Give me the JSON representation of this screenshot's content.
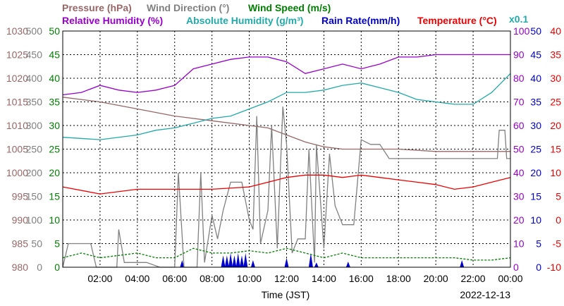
{
  "legend": {
    "row1": [
      {
        "text": "Pressure (hPa)",
        "color": "#996666"
      },
      {
        "text": "Wind Direction (°)",
        "color": "#808080"
      },
      {
        "text": "Wind Speed (m/s)",
        "color": "#008000"
      }
    ],
    "row2": [
      {
        "text": "Relative Humidity (%)",
        "color": "#9900cc"
      },
      {
        "text": "Absolute Humidity (g/m³)",
        "color": "#22aaaa"
      },
      {
        "text": "Rain Rate(mm/h)",
        "color": "#0000cc"
      },
      {
        "text": "Temperature (°C)",
        "color": "#ee0000"
      }
    ],
    "multiplier_note": {
      "text": "x0.1",
      "color": "#22aaaa"
    }
  },
  "axes": {
    "pressure": {
      "color": "#996666",
      "ticks": [
        "980",
        "985",
        "990",
        "995",
        "1000",
        "1005",
        "1010",
        "1015",
        "1020",
        "1025",
        "1030"
      ]
    },
    "wind_dir": {
      "color": "#808080",
      "ticks": [
        "0",
        "50",
        "100",
        "150",
        "200",
        "250",
        "300",
        "350",
        "400",
        "450",
        "500"
      ]
    },
    "wind_speed": {
      "color": "#008000",
      "ticks": [
        "0",
        "5",
        "10",
        "15",
        "20",
        "25",
        "30",
        "35",
        "40",
        "45",
        "50"
      ]
    },
    "humidity": {
      "color": "#9900cc",
      "ticks": [
        "0",
        "10",
        "20",
        "30",
        "40",
        "50",
        "60",
        "70",
        "80",
        "90",
        "100"
      ]
    },
    "rain": {
      "color": "#0000cc",
      "ticks": [
        "0",
        "5",
        "10",
        "15",
        "20",
        "25",
        "30",
        "35",
        "40",
        "45",
        "50"
      ]
    },
    "temperature": {
      "color": "#ee0000",
      "ticks": [
        "-10",
        "-5",
        "0",
        "5",
        "10",
        "15",
        "20",
        "25",
        "30",
        "35",
        "40"
      ]
    },
    "x_ticks": [
      "02:00",
      "04:00",
      "06:00",
      "08:00",
      "10:00",
      "12:00",
      "14:00",
      "16:00",
      "18:00",
      "20:00",
      "22:00",
      "00:00"
    ],
    "x_label": "Time (JST)",
    "date": "2022-12-13"
  },
  "chart_data": {
    "type": "line",
    "x_unit": "hours (JST), 2022-12-13",
    "x_range": [
      0,
      24
    ],
    "series": [
      {
        "name": "Pressure (hPa)",
        "color": "#996666",
        "scale": "pressure",
        "ylim": [
          980,
          1030
        ],
        "points": [
          [
            0,
            1016
          ],
          [
            2,
            1015
          ],
          [
            4,
            1013.5
          ],
          [
            6,
            1012
          ],
          [
            8,
            1011
          ],
          [
            10,
            1010
          ],
          [
            11,
            1009.5
          ],
          [
            12,
            1008
          ],
          [
            13,
            1006.5
          ],
          [
            14,
            1005.5
          ],
          [
            15,
            1005
          ],
          [
            16,
            1005
          ],
          [
            18,
            1005
          ],
          [
            20,
            1004.5
          ],
          [
            22,
            1004.5
          ],
          [
            24,
            1004.5
          ]
        ]
      },
      {
        "name": "Wind Direction (°)",
        "color": "#808080",
        "scale": "wind_dir",
        "ylim": [
          0,
          500
        ],
        "points": [
          [
            0,
            0
          ],
          [
            0.3,
            50
          ],
          [
            1.5,
            50
          ],
          [
            1.8,
            0
          ],
          [
            2.9,
            0
          ],
          [
            3,
            80
          ],
          [
            3.3,
            10
          ],
          [
            4.5,
            10
          ],
          [
            5.2,
            0
          ],
          [
            6,
            0
          ],
          [
            6.2,
            200
          ],
          [
            6.5,
            0
          ],
          [
            7.2,
            0
          ],
          [
            7.4,
            200
          ],
          [
            7.6,
            10
          ],
          [
            8,
            110
          ],
          [
            8.3,
            60
          ],
          [
            8.6,
            120
          ],
          [
            9,
            180
          ],
          [
            9.6,
            180
          ],
          [
            10,
            100
          ],
          [
            10.2,
            80
          ],
          [
            10.4,
            320
          ],
          [
            10.6,
            50
          ],
          [
            11,
            120
          ],
          [
            11.2,
            300
          ],
          [
            11.5,
            40
          ],
          [
            11.8,
            340
          ],
          [
            12,
            260
          ],
          [
            12.3,
            30
          ],
          [
            12.6,
            60
          ],
          [
            13,
            60
          ],
          [
            13.2,
            250
          ],
          [
            13.5,
            10
          ],
          [
            13.6,
            260
          ],
          [
            14,
            40
          ],
          [
            14.3,
            240
          ],
          [
            14.6,
            130
          ],
          [
            15,
            90
          ],
          [
            15.6,
            90
          ],
          [
            16,
            270
          ],
          [
            16.5,
            260
          ],
          [
            17,
            260
          ],
          [
            17.5,
            230
          ],
          [
            18,
            230
          ],
          [
            20,
            230
          ],
          [
            22,
            230
          ],
          [
            23.3,
            230
          ],
          [
            23.4,
            290
          ],
          [
            23.7,
            290
          ],
          [
            23.8,
            230
          ],
          [
            24,
            230
          ]
        ]
      },
      {
        "name": "Wind Speed (m/s)",
        "color": "#008000",
        "scale": "wind_speed",
        "ylim": [
          0,
          50
        ],
        "style": "dashed",
        "points": [
          [
            0,
            2
          ],
          [
            1,
            3
          ],
          [
            2,
            2
          ],
          [
            3,
            2.5
          ],
          [
            4,
            3
          ],
          [
            5,
            2
          ],
          [
            6,
            2
          ],
          [
            7,
            4
          ],
          [
            8,
            3
          ],
          [
            9,
            3
          ],
          [
            10,
            3.5
          ],
          [
            11,
            3
          ],
          [
            12,
            4
          ],
          [
            13,
            3
          ],
          [
            14,
            2
          ],
          [
            15,
            3
          ],
          [
            16,
            2
          ],
          [
            17,
            2
          ],
          [
            18,
            2
          ],
          [
            19,
            2
          ],
          [
            20,
            2
          ],
          [
            21,
            2
          ],
          [
            22,
            1.5
          ],
          [
            23,
            1.5
          ],
          [
            24,
            2
          ]
        ]
      },
      {
        "name": "Relative Humidity (%)",
        "color": "#9900cc",
        "scale": "humidity",
        "ylim": [
          0,
          100
        ],
        "points": [
          [
            0,
            73
          ],
          [
            1,
            74
          ],
          [
            2,
            77
          ],
          [
            3,
            75
          ],
          [
            4,
            74
          ],
          [
            5,
            75
          ],
          [
            6,
            77
          ],
          [
            7,
            84
          ],
          [
            8,
            86
          ],
          [
            9,
            88
          ],
          [
            10,
            89
          ],
          [
            11,
            89
          ],
          [
            12,
            87
          ],
          [
            13,
            82
          ],
          [
            14,
            84
          ],
          [
            15,
            86
          ],
          [
            16,
            84
          ],
          [
            17,
            86
          ],
          [
            18,
            89
          ],
          [
            19,
            89
          ],
          [
            20,
            90
          ],
          [
            21,
            90
          ],
          [
            22,
            90
          ],
          [
            23,
            90
          ],
          [
            24,
            90
          ]
        ]
      },
      {
        "name": "Absolute Humidity (g/m³)",
        "color": "#22aaaa",
        "scale": "humidity",
        "ylim": [
          0,
          100
        ],
        "points": [
          [
            0,
            55
          ],
          [
            2,
            54
          ],
          [
            4,
            56
          ],
          [
            5,
            58
          ],
          [
            6,
            59
          ],
          [
            7,
            61
          ],
          [
            8,
            63
          ],
          [
            9,
            64
          ],
          [
            10,
            67
          ],
          [
            11,
            70
          ],
          [
            12,
            74
          ],
          [
            13,
            74
          ],
          [
            14,
            75
          ],
          [
            15,
            77
          ],
          [
            16,
            78
          ],
          [
            17,
            76
          ],
          [
            18,
            74
          ],
          [
            19,
            71
          ],
          [
            20,
            70
          ],
          [
            21,
            69
          ],
          [
            22,
            69
          ],
          [
            23,
            74
          ],
          [
            24,
            82
          ]
        ]
      },
      {
        "name": "Temperature (°C)",
        "color": "#ee0000",
        "scale": "temperature",
        "ylim": [
          -10,
          40
        ],
        "points": [
          [
            0,
            7
          ],
          [
            2,
            5.5
          ],
          [
            4,
            6.5
          ],
          [
            6,
            6.5
          ],
          [
            8,
            6.5
          ],
          [
            10,
            7
          ],
          [
            12,
            9
          ],
          [
            13,
            9.5
          ],
          [
            14,
            9.5
          ],
          [
            15,
            9
          ],
          [
            16,
            9.5
          ],
          [
            17,
            9
          ],
          [
            18,
            8.5
          ],
          [
            19,
            8
          ],
          [
            20,
            7.5
          ],
          [
            21,
            6.5
          ],
          [
            22,
            7
          ],
          [
            23,
            8
          ],
          [
            24,
            9
          ]
        ]
      },
      {
        "name": "Rain Rate(mm/h)",
        "color": "#0000cc",
        "scale": "rain",
        "ylim": [
          0,
          50
        ],
        "type": "area",
        "events": [
          [
            6.4,
            1.5
          ],
          [
            8.6,
            2.5
          ],
          [
            8.8,
            2.5
          ],
          [
            9,
            3
          ],
          [
            9.2,
            2.5
          ],
          [
            9.4,
            3
          ],
          [
            9.6,
            2.5
          ],
          [
            9.8,
            3
          ],
          [
            10.2,
            1.5
          ],
          [
            12,
            2
          ],
          [
            13.3,
            3
          ],
          [
            13.6,
            1
          ],
          [
            15.3,
            1.2
          ],
          [
            21.4,
            1.5
          ]
        ]
      }
    ]
  }
}
